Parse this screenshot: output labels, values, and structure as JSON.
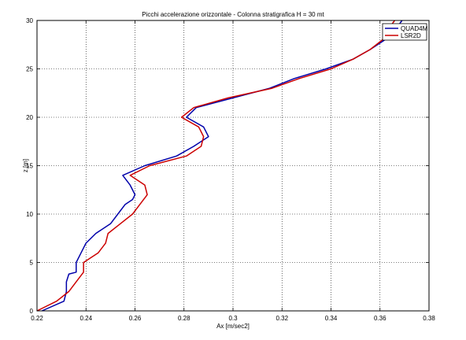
{
  "chart_data": {
    "type": "line",
    "title": "Picchi accelerazione orizzontale - Colonna stratigrafica H = 30 mt",
    "xlabel": "Ax [m/sec2]",
    "ylabel": "z [m]",
    "xlim": [
      0.22,
      0.38
    ],
    "ylim": [
      0,
      30
    ],
    "xticks": [
      0.22,
      0.24,
      0.26,
      0.28,
      0.3,
      0.32,
      0.34,
      0.36,
      0.38
    ],
    "xtick_labels": [
      "0.22",
      "0.24",
      "0.26",
      "0.28",
      "0.3",
      "0.32",
      "0.34",
      "0.36",
      "0.38"
    ],
    "yticks": [
      0,
      5,
      10,
      15,
      20,
      25,
      30
    ],
    "ytick_labels": [
      "0",
      "5",
      "10",
      "15",
      "20",
      "25",
      "30"
    ],
    "grid": true,
    "legend_position": "top-right",
    "series": [
      {
        "name": "QUAD4M",
        "color": "#0000aa",
        "points": [
          [
            0.222,
            0
          ],
          [
            0.231,
            1
          ],
          [
            0.232,
            2
          ],
          [
            0.232,
            3
          ],
          [
            0.233,
            3.8
          ],
          [
            0.236,
            4
          ],
          [
            0.236,
            5
          ],
          [
            0.238,
            6
          ],
          [
            0.24,
            7
          ],
          [
            0.244,
            8
          ],
          [
            0.25,
            9
          ],
          [
            0.253,
            10
          ],
          [
            0.256,
            11
          ],
          [
            0.259,
            11.5
          ],
          [
            0.26,
            12
          ],
          [
            0.258,
            13
          ],
          [
            0.255,
            14
          ],
          [
            0.264,
            15
          ],
          [
            0.277,
            16
          ],
          [
            0.284,
            17
          ],
          [
            0.29,
            18
          ],
          [
            0.288,
            19
          ],
          [
            0.281,
            20
          ],
          [
            0.285,
            21
          ],
          [
            0.3,
            22
          ],
          [
            0.315,
            23
          ],
          [
            0.325,
            24
          ],
          [
            0.338,
            25
          ],
          [
            0.349,
            26
          ],
          [
            0.356,
            27
          ],
          [
            0.362,
            28
          ],
          [
            0.366,
            29
          ],
          [
            0.369,
            30
          ]
        ]
      },
      {
        "name": "LSR2D",
        "color": "#cc0000",
        "points": [
          [
            0.22,
            0
          ],
          [
            0.228,
            1
          ],
          [
            0.233,
            2
          ],
          [
            0.236,
            3
          ],
          [
            0.239,
            4
          ],
          [
            0.239,
            5
          ],
          [
            0.245,
            6
          ],
          [
            0.248,
            7
          ],
          [
            0.249,
            8
          ],
          [
            0.254,
            9
          ],
          [
            0.259,
            10
          ],
          [
            0.262,
            11
          ],
          [
            0.265,
            12
          ],
          [
            0.264,
            13
          ],
          [
            0.258,
            14
          ],
          [
            0.266,
            15
          ],
          [
            0.281,
            16
          ],
          [
            0.287,
            17
          ],
          [
            0.288,
            18
          ],
          [
            0.286,
            19
          ],
          [
            0.279,
            20
          ],
          [
            0.284,
            21
          ],
          [
            0.298,
            22
          ],
          [
            0.316,
            23
          ],
          [
            0.327,
            24
          ],
          [
            0.34,
            25
          ],
          [
            0.349,
            26
          ],
          [
            0.356,
            27
          ],
          [
            0.361,
            28
          ],
          [
            0.363,
            29
          ],
          [
            0.366,
            30
          ]
        ]
      }
    ]
  }
}
